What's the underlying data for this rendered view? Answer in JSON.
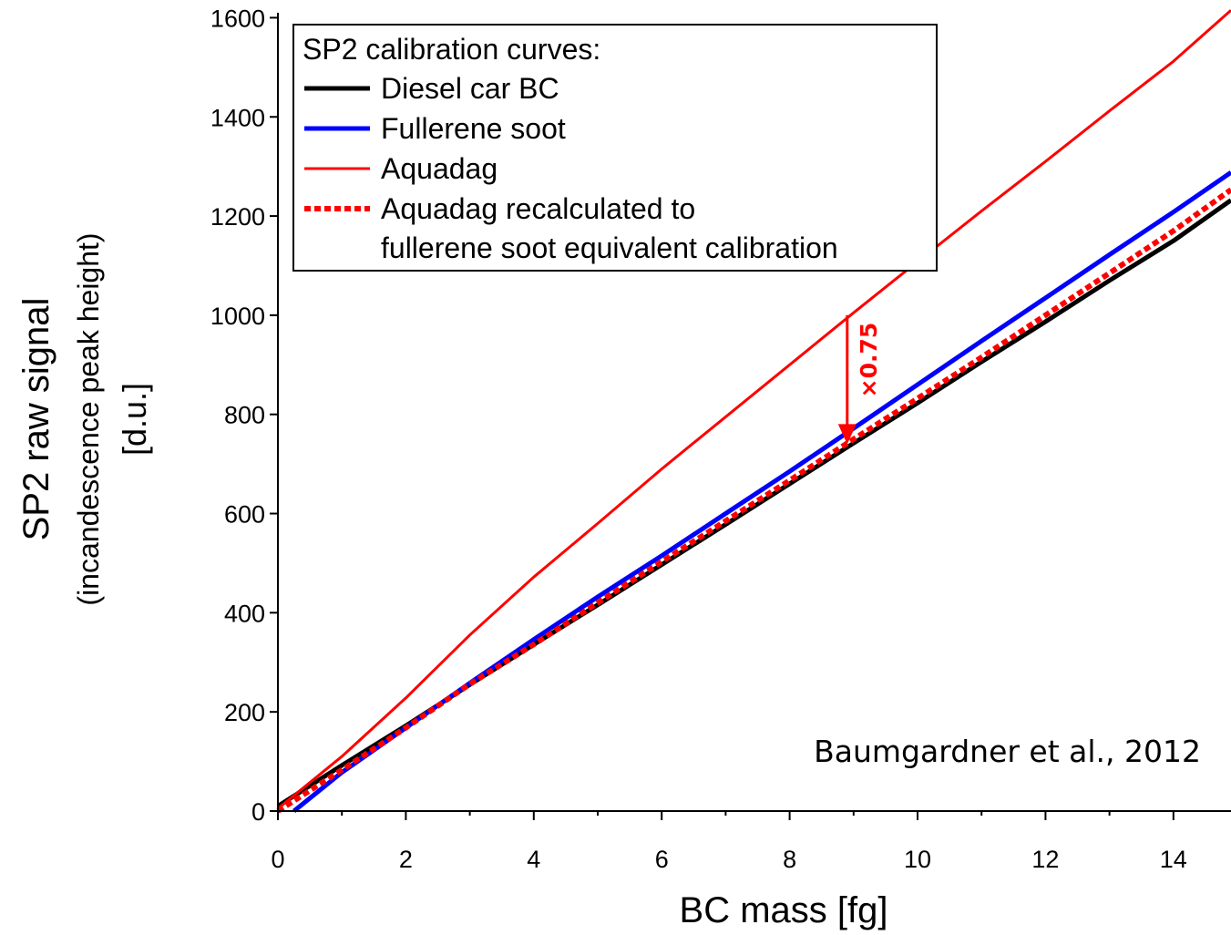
{
  "chart_data": {
    "type": "line",
    "xlabel": "BC mass [fg]",
    "ylabel_lines": [
      "SP2 raw signal",
      "(incandescence peak height)",
      "[d.u.]"
    ],
    "xlim": [
      0,
      14.9
    ],
    "ylim": [
      0,
      1610
    ],
    "x_ticks": [
      0,
      2,
      4,
      6,
      8,
      10,
      12,
      14
    ],
    "y_ticks": [
      0,
      200,
      400,
      600,
      800,
      1000,
      1200,
      1400,
      1600
    ],
    "grid": false,
    "legend": {
      "title": "SP2 calibration curves:",
      "placement": "top-left",
      "entries": [
        {
          "label": "Diesel car BC"
        },
        {
          "label": "Fullerene soot"
        },
        {
          "label": "Aquadag"
        },
        {
          "label_lines": [
            "Aquadag recalculated to",
            "fullerene soot equivalent calibration"
          ]
        }
      ]
    },
    "series": [
      {
        "name": "Diesel car BC",
        "color": "#000000",
        "style": "solid",
        "x": [
          0,
          1,
          2,
          3,
          4,
          5,
          6,
          7,
          8,
          9,
          10,
          11,
          12,
          13,
          14,
          14.9
        ],
        "y": [
          10,
          92,
          172,
          255,
          336,
          416,
          497,
          578,
          660,
          742,
          823,
          906,
          987,
          1070,
          1150,
          1232
        ]
      },
      {
        "name": "Fullerene soot",
        "color": "#0000ff",
        "style": "solid",
        "x": [
          0.25,
          1,
          2,
          3,
          4,
          5,
          6,
          7,
          8,
          9,
          10,
          11,
          12,
          13,
          14,
          14.9
        ],
        "y": [
          0,
          78,
          168,
          258,
          346,
          432,
          515,
          600,
          685,
          772,
          860,
          948,
          1035,
          1122,
          1208,
          1288
        ]
      },
      {
        "name": "Aquadag",
        "color": "#ff0000",
        "style": "solid",
        "x": [
          0,
          1,
          2,
          3,
          4,
          5,
          6,
          7,
          8,
          9,
          10,
          11,
          12,
          13,
          14,
          14.9
        ],
        "y": [
          5,
          110,
          228,
          355,
          472,
          580,
          690,
          795,
          900,
          1005,
          1108,
          1210,
          1310,
          1412,
          1512,
          1615
        ]
      },
      {
        "name": "Aquadag recalculated to fullerene soot equivalent calibration",
        "color": "#ff0000",
        "style": "dashed",
        "x": [
          0,
          1,
          2,
          3,
          4,
          5,
          6,
          7,
          8,
          9,
          10,
          11,
          12,
          13,
          14,
          14.9
        ],
        "y": [
          0,
          83,
          168,
          256,
          336,
          420,
          503,
          585,
          667,
          750,
          832,
          915,
          1000,
          1085,
          1170,
          1253
        ]
      }
    ],
    "annotations": [
      {
        "text": "×0.75",
        "color": "#ff0000",
        "arrow_x": 8.9,
        "arrow_from_y": 1000,
        "arrow_to_y": 740
      },
      {
        "text": "Baumgardner et al., 2012",
        "placement": "bottom-right"
      }
    ]
  }
}
